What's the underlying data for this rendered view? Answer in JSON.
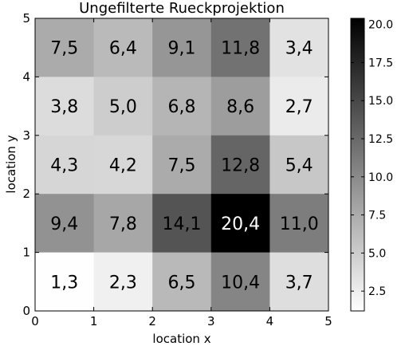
{
  "chart_data": {
    "type": "heatmap",
    "title": "Ungefilterte Rueckprojektion",
    "xlabel": "location x",
    "ylabel": "location y",
    "xlim": [
      0,
      5
    ],
    "ylim": [
      0,
      5
    ],
    "x_ticks": [
      "0",
      "1",
      "2",
      "3",
      "4",
      "5"
    ],
    "y_ticks": [
      "0",
      "1",
      "2",
      "3",
      "4",
      "5"
    ],
    "colormap": "gray_r",
    "color_range": [
      1.2,
      20.4
    ],
    "colorbar_ticks": [
      "2.5",
      "5.0",
      "7.5",
      "10.0",
      "12.5",
      "15.0",
      "17.5",
      "20.0"
    ],
    "colorbar_tick_values": [
      2.5,
      5.0,
      7.5,
      10.0,
      12.5,
      15.0,
      17.5,
      20.0
    ],
    "rows_top_to_bottom": [
      {
        "values": [
          7.5,
          6.4,
          9.1,
          11.8,
          3.4
        ],
        "labels": [
          "7,5",
          "6,4",
          "9,1",
          "11,8",
          "3,4"
        ]
      },
      {
        "values": [
          3.8,
          5.0,
          6.8,
          8.6,
          2.7
        ],
        "labels": [
          "3,8",
          "5,0",
          "6,8",
          "8,6",
          "2,7"
        ]
      },
      {
        "values": [
          4.3,
          4.2,
          7.5,
          12.8,
          5.4
        ],
        "labels": [
          "4,3",
          "4,2",
          "7,5",
          "12,8",
          "5,4"
        ]
      },
      {
        "values": [
          9.4,
          7.8,
          14.1,
          20.4,
          11.0
        ],
        "labels": [
          "9,4",
          "7,8",
          "14,1",
          "20,4",
          "11,0"
        ]
      },
      {
        "values": [
          1.3,
          2.3,
          6.5,
          10.4,
          3.7
        ],
        "labels": [
          "1,3",
          "2,3",
          "6,5",
          "10,4",
          "3,7"
        ]
      }
    ]
  }
}
